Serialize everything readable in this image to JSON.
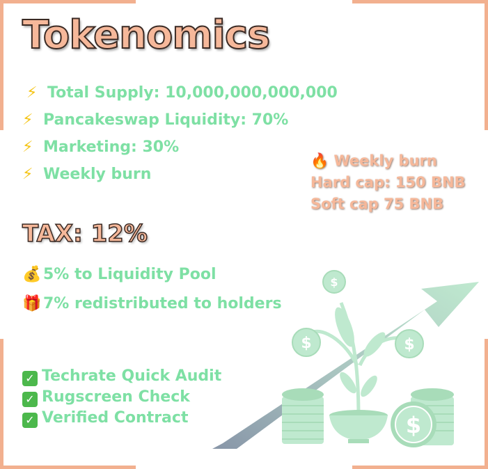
{
  "title": "Tokenomics",
  "features": [
    {
      "icon": "lightning-icon",
      "text": "Total Supply: 10,000,000,000,000"
    },
    {
      "icon": "lightning-icon",
      "text": "Pancakeswap Liquidity: 70%"
    },
    {
      "icon": "lightning-icon",
      "text": "Marketing:  30%"
    },
    {
      "icon": "lightning-icon",
      "text": "Weekly burn"
    }
  ],
  "side_info": {
    "weekly_burn": "Weekly burn",
    "hard_cap": "Hard cap: 150 BNB",
    "soft_cap": "Soft cap 75 BNB"
  },
  "tax": {
    "title": "TAX: 12%",
    "items": [
      {
        "icon": "money-bag-icon",
        "text": "5% to Liquidity Pool"
      },
      {
        "icon": "gift-icon",
        "text": "7% redistributed to holders"
      }
    ]
  },
  "checks": [
    {
      "icon": "check-icon",
      "text": "Techrate Quick Audit"
    },
    {
      "icon": "check-icon",
      "text": "Rugscreen Check"
    },
    {
      "icon": "check-icon",
      "text": "Verified Contract"
    }
  ],
  "colors": {
    "accent_peach": "#f6b89a",
    "text_green": "#7ee0a4",
    "frame": "#f2b08f"
  }
}
